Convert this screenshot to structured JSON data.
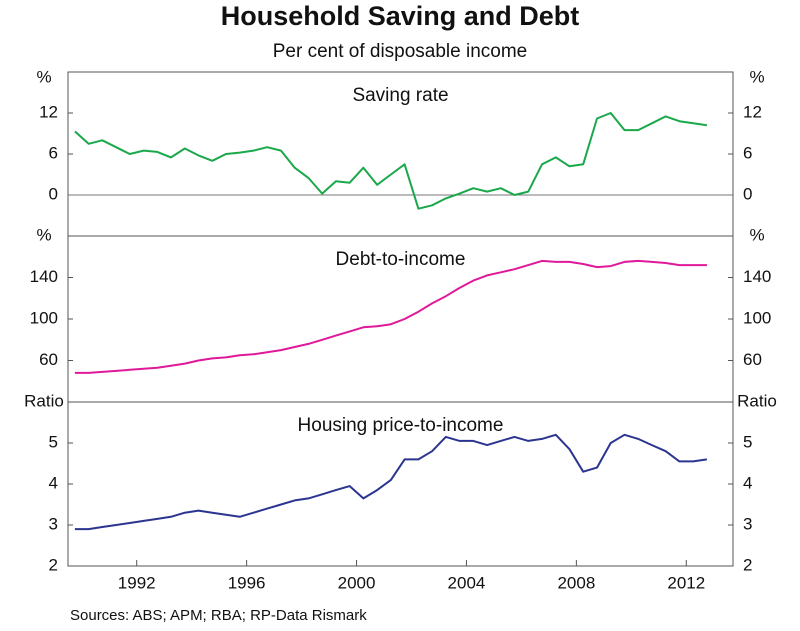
{
  "title": "Household Saving and Debt",
  "subtitle": "Per cent of disposable income",
  "source": "Sources: ABS; APM; RBA; RP-Data Rismark",
  "chart_data": [
    {
      "type": "line",
      "title": "Saving rate",
      "y_unit": "%",
      "zero_line": true,
      "x": [
        1989.75,
        1990.25,
        1990.75,
        1991.25,
        1991.75,
        1992.25,
        1992.75,
        1993.25,
        1993.75,
        1994.25,
        1994.75,
        1995.25,
        1995.75,
        1996.25,
        1996.75,
        1997.25,
        1997.75,
        1998.25,
        1998.75,
        1999.25,
        1999.75,
        2000.25,
        2000.75,
        2001.25,
        2001.75,
        2002.25,
        2002.75,
        2003.25,
        2003.75,
        2004.25,
        2004.75,
        2005.25,
        2005.75,
        2006.25,
        2006.75,
        2007.25,
        2007.75,
        2008.25,
        2008.75,
        2009.25,
        2009.75,
        2010.25,
        2010.75,
        2011.25,
        2011.75,
        2012.25,
        2012.75
      ],
      "series": [
        {
          "name": "Saving rate",
          "color": "#1aa84b",
          "values": [
            9.3,
            7.5,
            8.0,
            7.0,
            6.0,
            6.5,
            6.3,
            5.5,
            6.8,
            5.8,
            5.0,
            6.0,
            6.2,
            6.5,
            7.0,
            6.5,
            4.0,
            2.5,
            0.2,
            2.0,
            1.8,
            4.0,
            1.5,
            3.0,
            4.5,
            -2.0,
            -1.5,
            -0.5,
            0.2,
            1.0,
            0.5,
            1.0,
            0.0,
            0.5,
            4.5,
            5.5,
            4.2,
            4.5,
            11.2,
            12.0,
            9.5,
            9.5,
            10.5,
            11.5,
            10.8,
            10.5,
            10.2
          ]
        }
      ],
      "xlim": [
        1989.5,
        2013.7
      ],
      "ylim": [
        -6,
        18
      ],
      "yticks": [
        0,
        6,
        12
      ]
    },
    {
      "type": "line",
      "title": "Debt-to-income",
      "y_unit": "%",
      "x": [
        1989.75,
        1990.25,
        1990.75,
        1991.25,
        1991.75,
        1992.25,
        1992.75,
        1993.25,
        1993.75,
        1994.25,
        1994.75,
        1995.25,
        1995.75,
        1996.25,
        1996.75,
        1997.25,
        1997.75,
        1998.25,
        1998.75,
        1999.25,
        1999.75,
        2000.25,
        2000.75,
        2001.25,
        2001.75,
        2002.25,
        2002.75,
        2003.25,
        2003.75,
        2004.25,
        2004.75,
        2005.25,
        2005.75,
        2006.25,
        2006.75,
        2007.25,
        2007.75,
        2008.25,
        2008.75,
        2009.25,
        2009.75,
        2010.25,
        2010.75,
        2011.25,
        2011.75,
        2012.25,
        2012.75
      ],
      "series": [
        {
          "name": "Debt-to-income",
          "color": "#e0189a",
          "values": [
            48,
            48,
            49,
            50,
            51,
            52,
            53,
            55,
            57,
            60,
            62,
            63,
            65,
            66,
            68,
            70,
            73,
            76,
            80,
            84,
            88,
            92,
            93,
            95,
            100,
            107,
            115,
            122,
            130,
            137,
            142,
            145,
            148,
            152,
            156,
            155,
            155,
            153,
            150,
            151,
            155,
            156,
            155,
            154,
            152,
            152,
            152
          ]
        }
      ],
      "xlim": [
        1989.5,
        2013.7
      ],
      "ylim": [
        20,
        180
      ],
      "yticks": [
        60,
        100,
        140
      ]
    },
    {
      "type": "line",
      "title": "Housing price-to-income",
      "y_unit": "Ratio",
      "x": [
        1989.75,
        1990.25,
        1990.75,
        1991.25,
        1991.75,
        1992.25,
        1992.75,
        1993.25,
        1993.75,
        1994.25,
        1994.75,
        1995.25,
        1995.75,
        1996.25,
        1996.75,
        1997.25,
        1997.75,
        1998.25,
        1998.75,
        1999.25,
        1999.75,
        2000.25,
        2000.75,
        2001.25,
        2001.75,
        2002.25,
        2002.75,
        2003.25,
        2003.75,
        2004.25,
        2004.75,
        2005.25,
        2005.75,
        2006.25,
        2006.75,
        2007.25,
        2007.75,
        2008.25,
        2008.75,
        2009.25,
        2009.75,
        2010.25,
        2010.75,
        2011.25,
        2011.75,
        2012.25,
        2012.75
      ],
      "series": [
        {
          "name": "Housing price-to-income",
          "color": "#2b3590",
          "values": [
            2.9,
            2.9,
            2.95,
            3.0,
            3.05,
            3.1,
            3.15,
            3.2,
            3.3,
            3.35,
            3.3,
            3.25,
            3.2,
            3.3,
            3.4,
            3.5,
            3.6,
            3.65,
            3.75,
            3.85,
            3.95,
            3.65,
            3.85,
            4.1,
            4.6,
            4.6,
            4.8,
            5.15,
            5.05,
            5.05,
            4.95,
            5.05,
            5.15,
            5.05,
            5.1,
            5.2,
            4.85,
            4.3,
            4.4,
            5.0,
            5.2,
            5.1,
            4.95,
            4.8,
            4.55,
            4.55,
            4.6
          ]
        }
      ],
      "xlim": [
        1989.5,
        2013.7
      ],
      "ylim": [
        2,
        6
      ],
      "yticks": [
        2,
        3,
        4,
        5
      ],
      "xticks": [
        1992,
        1996,
        2000,
        2004,
        2008,
        2012
      ]
    }
  ]
}
